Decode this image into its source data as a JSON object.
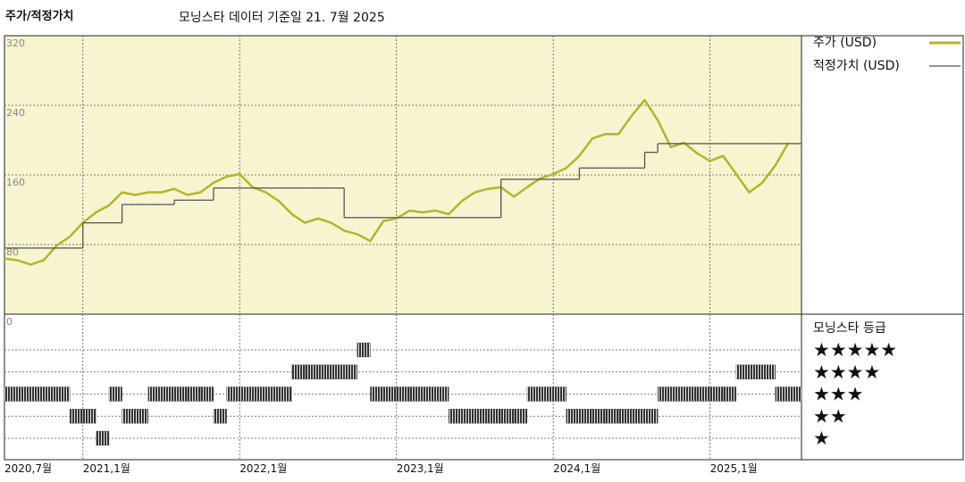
{
  "chart_data": {
    "type": "line",
    "title": "주가/적정가치",
    "subtitle": "모닝스타 데이터 기준일 21. 7월 2025",
    "x": [
      "2020-07",
      "2020-08",
      "2020-09",
      "2020-10",
      "2020-11",
      "2020-12",
      "2021-01",
      "2021-02",
      "2021-03",
      "2021-04",
      "2021-05",
      "2021-06",
      "2021-07",
      "2021-08",
      "2021-09",
      "2021-10",
      "2021-11",
      "2021-12",
      "2022-01",
      "2022-02",
      "2022-03",
      "2022-04",
      "2022-05",
      "2022-06",
      "2022-07",
      "2022-08",
      "2022-09",
      "2022-10",
      "2022-11",
      "2022-12",
      "2023-01",
      "2023-02",
      "2023-03",
      "2023-04",
      "2023-05",
      "2023-06",
      "2023-07",
      "2023-08",
      "2023-09",
      "2023-10",
      "2023-11",
      "2023-12",
      "2024-01",
      "2024-02",
      "2024-03",
      "2024-04",
      "2024-05",
      "2024-06",
      "2024-07",
      "2024-08",
      "2024-09",
      "2024-10",
      "2024-11",
      "2024-12",
      "2025-01",
      "2025-02",
      "2025-03",
      "2025-04",
      "2025-05",
      "2025-06",
      "2025-07"
    ],
    "xlim": [
      "2020-07",
      "2025-08"
    ],
    "xticks": [
      {
        "value": "2020-07",
        "label": "2020,7월"
      },
      {
        "value": "2021-01",
        "label": "2021,1월"
      },
      {
        "value": "2022-01",
        "label": "2022,1월"
      },
      {
        "value": "2023-01",
        "label": "2023,1월"
      },
      {
        "value": "2024-01",
        "label": "2024,1월"
      },
      {
        "value": "2025-01",
        "label": "2025,1월"
      }
    ],
    "ylim": [
      0,
      320
    ],
    "yticks": [
      0,
      80,
      160,
      240,
      320
    ],
    "grid": true,
    "series": [
      {
        "name": "주가 (USD)",
        "color": "#b3b52a",
        "values": [
          64,
          62,
          57,
          62,
          79,
          89,
          105,
          117,
          125,
          140,
          137,
          140,
          140,
          144,
          137,
          140,
          151,
          158,
          161,
          146,
          140,
          130,
          115,
          105,
          110,
          105,
          96,
          92,
          84,
          107,
          110,
          119,
          117,
          119,
          115,
          130,
          140,
          144,
          146,
          135,
          146,
          156,
          161,
          168,
          182,
          202,
          207,
          207,
          228,
          246,
          223,
          192,
          197,
          185,
          176,
          182,
          161,
          140,
          151,
          171,
          197
        ]
      },
      {
        "name": "적정가치 (USD)",
        "color": "#555555",
        "step": true,
        "values": [
          76,
          76,
          76,
          76,
          76,
          76,
          105,
          105,
          105,
          126,
          126,
          126,
          126,
          131,
          131,
          131,
          145,
          145,
          145,
          145,
          145,
          145,
          145,
          145,
          145,
          145,
          111,
          111,
          111,
          111,
          111,
          111,
          111,
          111,
          111,
          111,
          111,
          111,
          155,
          155,
          155,
          155,
          155,
          155,
          168,
          168,
          168,
          168,
          168,
          186,
          196,
          196,
          196,
          196,
          196,
          196,
          196,
          196,
          196,
          196,
          196
        ]
      }
    ],
    "ratings": {
      "title": "모닝스타 등급",
      "levels": [
        5,
        4,
        3,
        2,
        1
      ],
      "labels": [
        "★★★★★",
        "★★★★",
        "★★★",
        "★★",
        "★"
      ],
      "color": "#333333",
      "values": [
        3,
        3,
        3,
        3,
        3,
        2,
        2,
        1,
        3,
        2,
        2,
        3,
        3,
        3,
        3,
        3,
        2,
        3,
        3,
        3,
        3,
        3,
        4,
        4,
        4,
        4,
        4,
        5,
        3,
        3,
        3,
        3,
        3,
        3,
        2,
        2,
        2,
        2,
        2,
        2,
        3,
        3,
        3,
        2,
        2,
        2,
        2,
        2,
        2,
        2,
        3,
        3,
        3,
        3,
        3,
        3,
        4,
        4,
        4,
        3,
        3
      ]
    }
  }
}
